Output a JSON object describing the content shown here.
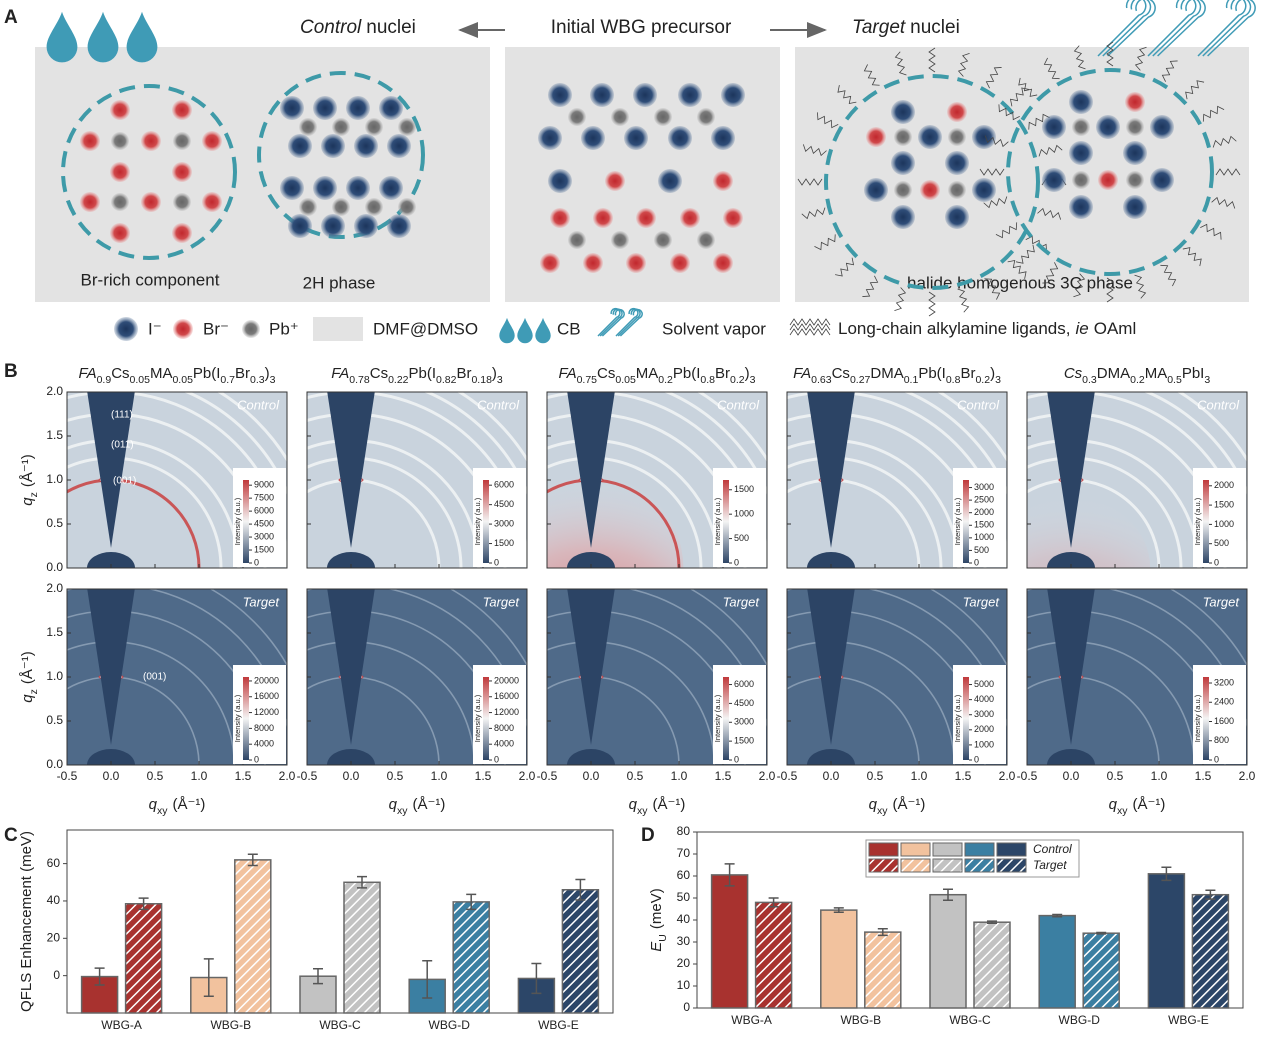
{
  "panel_labels": [
    "A",
    "B",
    "C",
    "D"
  ],
  "diagram": {
    "left_heading": [
      "Control",
      "nuclei"
    ],
    "center_heading": "Initial WBG precursor",
    "right_heading": [
      "Target",
      "nuclei"
    ],
    "captions": [
      "Br-rich component",
      "2H phase",
      "halide homogenous 3C phase"
    ],
    "legend": {
      "iodide": "I⁻",
      "bromide": "Br⁻",
      "lead": "Pb⁺",
      "solvent": "DMF@DMSO",
      "cb": "CB",
      "vapor": "Solvent vapor",
      "ligand": [
        "Long-chain alkylamine ligands,",
        "ie",
        "OAml"
      ]
    }
  },
  "chart_data": [
    {
      "type": "giwaxs",
      "compositions": [
        [
          "FA",
          "0.9",
          "Cs",
          "0.05",
          "MA",
          "0.05",
          "Pb(I",
          "0.7",
          "Br",
          "0.3",
          ")",
          "3"
        ],
        [
          "FA",
          "0.78",
          "Cs",
          "0.22",
          "Pb(I",
          "0.82",
          "Br",
          "0.18",
          ")",
          "3"
        ],
        [
          "FA",
          "0.75",
          "Cs",
          "0.05",
          "MA",
          "0.2",
          "Pb(I",
          "0.8",
          "Br",
          "0.2",
          ")",
          "3"
        ],
        [
          "FA",
          "0.63",
          "Cs",
          "0.27",
          "DMA",
          "0.1",
          "Pb(I",
          "0.8",
          "Br",
          "0.2",
          ")",
          "3"
        ],
        [
          "Cs",
          "0.3",
          "DMA",
          "0.2",
          "MA",
          "0.5",
          "PbI",
          "3"
        ]
      ],
      "rows": [
        "Control",
        "Target"
      ],
      "xlim": [
        -0.5,
        2.0
      ],
      "ylim": [
        0,
        2.0
      ],
      "xticks": [
        -0.5,
        {
          "value": 0,
          "label": "0.0"
        },
        0.5,
        {
          "value": 1,
          "label": "1.0"
        },
        1.5,
        {
          "value": 2,
          "label": "2.0"
        }
      ],
      "yticks": [
        {
          "value": 0,
          "label": "0.0"
        },
        0.5,
        {
          "value": 1,
          "label": "1.0"
        },
        1.5,
        {
          "value": 2,
          "label": "2.0"
        }
      ],
      "x_label": [
        "q",
        "xy",
        "(Å⁻¹)"
      ],
      "y_label": [
        "q",
        "z",
        "(Å⁻¹)"
      ],
      "colorbar_label": "Intensity (a.u.)",
      "colorbar_ticks": [
        [
          [
            0,
            1500,
            3000,
            4500,
            6000,
            7500,
            9000
          ],
          [
            0,
            1500,
            3000,
            4500,
            6000
          ],
          [
            0,
            500,
            1000,
            1500
          ],
          [
            0,
            500,
            1000,
            1500,
            2000,
            2500,
            3000
          ],
          [
            0,
            500,
            1000,
            1500,
            2000
          ]
        ],
        [
          [
            0,
            4000,
            8000,
            12000,
            16000,
            20000
          ],
          [
            0,
            4000,
            8000,
            12000,
            16000,
            20000
          ],
          [
            0,
            1500,
            3000,
            4500,
            6000
          ],
          [
            0,
            1000,
            2000,
            3000,
            4000,
            5000
          ],
          [
            0,
            800,
            1600,
            2400,
            3200
          ]
        ]
      ],
      "colorbar_lims": [
        [
          [
            0,
            9600
          ],
          [
            0,
            6400
          ],
          [
            0,
            1700
          ],
          [
            0,
            3300
          ],
          [
            0,
            2150
          ]
        ],
        [
          [
            0,
            21000
          ],
          [
            0,
            21000
          ],
          [
            0,
            6600
          ],
          [
            0,
            5500
          ],
          [
            0,
            3450
          ]
        ]
      ],
      "peak_labels": [
        [
          "(111)",
          "(011)",
          "(001)"
        ],
        [
          "(001)"
        ]
      ]
    },
    {
      "type": "bar",
      "ylabel": "QFLS Enhancement (meV)",
      "categories": [
        "WBG-A",
        "WBG-B",
        "WBG-C",
        "WBG-D",
        "WBG-E"
      ],
      "colors": [
        "#a8322f",
        "#f2c29e",
        "#c2c2c2",
        "#3b7fa2",
        "#2c4668"
      ],
      "ylim": [
        -20,
        78
      ],
      "yticks": [
        0,
        20,
        40,
        60
      ],
      "series": [
        {
          "values": [
            -0.5,
            -1,
            -0.3,
            -2,
            -1.5
          ],
          "errors": [
            4.5,
            10,
            4,
            10,
            8
          ]
        },
        {
          "hatch": true,
          "values": [
            38.5,
            62,
            50,
            39.5,
            46
          ],
          "errors": [
            3,
            3,
            3,
            4,
            5.5
          ]
        }
      ]
    },
    {
      "type": "bar",
      "ylabel": [
        "E",
        "U",
        "(meV)"
      ],
      "categories": [
        "WBG-A",
        "WBG-B",
        "WBG-C",
        "WBG-D",
        "WBG-E"
      ],
      "colors": [
        "#a8322f",
        "#f2c29e",
        "#c2c2c2",
        "#3b7fa2",
        "#2c4668"
      ],
      "ylim": [
        0,
        80
      ],
      "yticks": [
        0,
        10,
        20,
        30,
        40,
        50,
        60,
        70,
        80
      ],
      "legend": "top",
      "series": [
        {
          "name": "Control",
          "values": [
            60.5,
            44.5,
            51.5,
            42,
            61
          ],
          "errors": [
            5,
            1,
            2.5,
            0.5,
            3
          ]
        },
        {
          "name": "Target",
          "hatch": true,
          "values": [
            48,
            34.5,
            39,
            34,
            51.5
          ],
          "errors": [
            2,
            1.5,
            0.5,
            0.3,
            2
          ]
        }
      ]
    }
  ]
}
